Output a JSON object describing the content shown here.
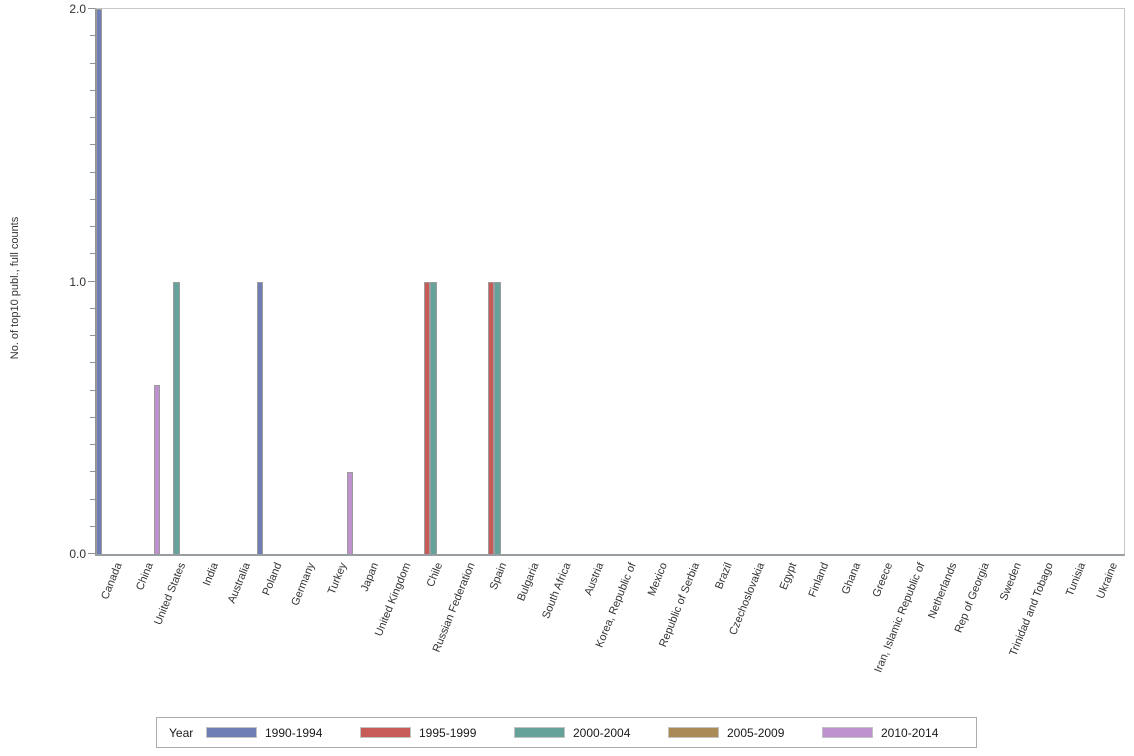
{
  "chart_data": {
    "type": "bar",
    "title": "",
    "xlabel": "",
    "ylabel": "No. of top10 publ., full counts",
    "ylim": [
      0.0,
      2.0
    ],
    "yticks_major": [
      {
        "value": 0.0,
        "label": "0.0"
      },
      {
        "value": 1.0,
        "label": "1.0"
      },
      {
        "value": 2.0,
        "label": "2.0"
      }
    ],
    "minor_tick_interval": 0.1,
    "grid": "off",
    "legend_title": "Year",
    "legend_position": "bottom",
    "categories": [
      "Canada",
      "China",
      "United States",
      "India",
      "Australia",
      "Poland",
      "Germany",
      "Turkey",
      "Japan",
      "United Kingdom",
      "Chile",
      "Russian Federation",
      "Spain",
      "Bulgaria",
      "South Africa",
      "Austria",
      "Korea, Republic of",
      "Mexico",
      "Republic of Serbia",
      "Brazil",
      "Czechoslovakia",
      "Egypt",
      "Finland",
      "Ghana",
      "Greece",
      "Iran, Islamic Republic of",
      "Netherlands",
      "Rep of Georgia",
      "Sweden",
      "Trinidad and Tobago",
      "Tunisia",
      "Ukraine"
    ],
    "series": [
      {
        "name": "1990-1994",
        "color": "#6F7EB4",
        "values": [
          2.0,
          0,
          0,
          0,
          0,
          1.0,
          0,
          0,
          0,
          0,
          0,
          0,
          0,
          0,
          0,
          0,
          0,
          0,
          0,
          0,
          0,
          0,
          0,
          0,
          0,
          0,
          0,
          0,
          0,
          0,
          0,
          0
        ]
      },
      {
        "name": "1995-1999",
        "color": "#C75B57",
        "values": [
          0,
          0,
          0,
          0,
          0,
          0,
          0,
          0,
          0,
          0,
          1.0,
          0,
          1.0,
          0,
          0,
          0,
          0,
          0,
          0,
          0,
          0,
          0,
          0,
          0,
          0,
          0,
          0,
          0,
          0,
          0,
          0,
          0
        ]
      },
      {
        "name": "2000-2004",
        "color": "#67A29A",
        "values": [
          0,
          0,
          1.0,
          0,
          0,
          0,
          0,
          0,
          0,
          0,
          1.0,
          0,
          1.0,
          0,
          0,
          0,
          0,
          0,
          0,
          0,
          0,
          0,
          0,
          0,
          0,
          0,
          0,
          0,
          0,
          0,
          0,
          0
        ]
      },
      {
        "name": "2005-2009",
        "color": "#AA8A55",
        "values": [
          0,
          0,
          0,
          0,
          0,
          0,
          0,
          0,
          0,
          0,
          0,
          0,
          0,
          0,
          0,
          0,
          0,
          0,
          0,
          0,
          0,
          0,
          0,
          0,
          0,
          0,
          0,
          0,
          0,
          0,
          0,
          0
        ]
      },
      {
        "name": "2010-2014",
        "color": "#BD92CF",
        "values": [
          0,
          0.62,
          0,
          0,
          0,
          0,
          0,
          0.3,
          0,
          0,
          0,
          0,
          0,
          0,
          0,
          0,
          0,
          0,
          0,
          0,
          0,
          0,
          0,
          0,
          0,
          0,
          0,
          0,
          0,
          0,
          0,
          0
        ]
      }
    ]
  }
}
